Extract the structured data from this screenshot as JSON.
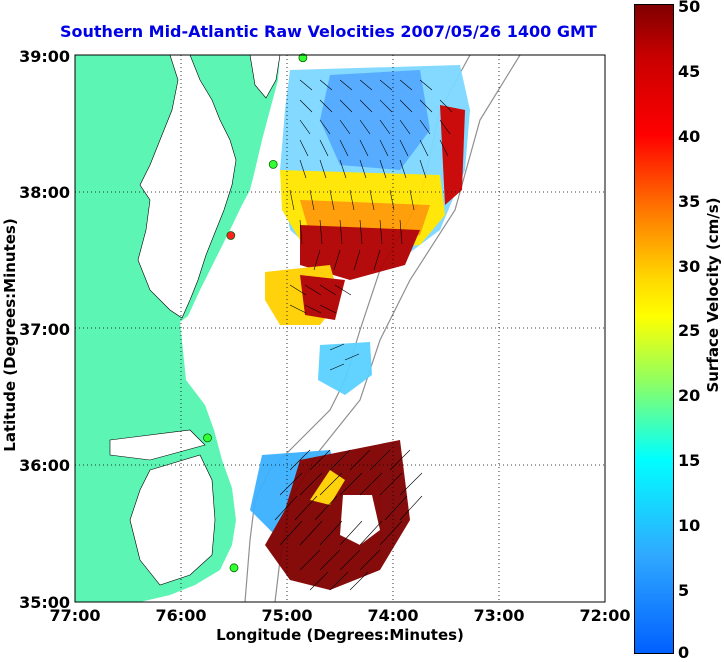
{
  "title": "Southern Mid-Atlantic Raw Velocities 2007/05/26 1400 GMT",
  "axes": {
    "xlabel": "Longitude (Degrees:Minutes)",
    "ylabel": "Latitude (Degrees:Minutes)",
    "xticks": [
      "77:00",
      "76:00",
      "75:00",
      "74:00",
      "73:00",
      "72:00"
    ],
    "yticks": [
      "39:00",
      "38:00",
      "37:00",
      "36:00",
      "35:00"
    ],
    "xlim": [
      -77,
      -72
    ],
    "ylim": [
      35,
      39
    ],
    "grid": true
  },
  "colorbar": {
    "label": "Surface Velocity (cm/s)",
    "ticks": [
      "50",
      "45",
      "40",
      "35",
      "30",
      "25",
      "20",
      "15",
      "10",
      "5",
      "0"
    ],
    "range": [
      0,
      50
    ],
    "colors": [
      "#0060ff",
      "#00ffff",
      "#ffff00",
      "#ff7a00",
      "#ff0000",
      "#800000"
    ]
  },
  "colors": {
    "land": "#5cf5b4",
    "water": "#ffffff",
    "title": "#0000e6",
    "station": "#33ff33",
    "station_alt": "#ff2020",
    "isobath": "#909090"
  },
  "stations": [
    {
      "lon": -74.85,
      "lat": 38.98,
      "color": "station"
    },
    {
      "lon": -75.13,
      "lat": 38.2,
      "color": "station"
    },
    {
      "lon": -75.53,
      "lat": 37.68,
      "color": "station_alt"
    },
    {
      "lon": -75.75,
      "lat": 36.2,
      "color": "station"
    },
    {
      "lon": -75.5,
      "lat": 35.25,
      "color": "station"
    }
  ]
}
